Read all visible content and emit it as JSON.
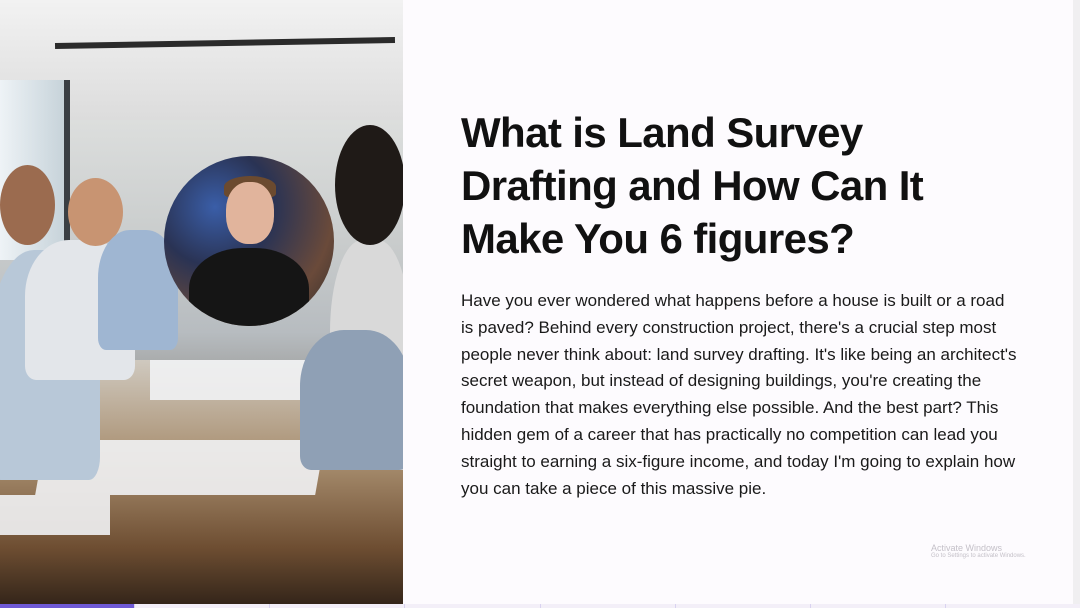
{
  "slide": {
    "title": "What is Land Survey Drafting and How Can It Make You 6 figures?",
    "body": "Have you ever wondered what happens before a house is built or a road is paved? Behind every construction project, there's a crucial step most people never think about: land survey drafting. It's like being an architect's secret weapon, but instead of designing buildings, you're creating the foundation that makes everything else possible. And the best part? This hidden gem of a career that has practically no competition can lead you straight to earning a six-figure income, and today I'm going to explain how you can take a piece of this massive pie."
  },
  "watermark": {
    "line1": "Activate Windows",
    "line2": "Go to Settings to activate Windows."
  },
  "progress": {
    "segments": 8,
    "completed": 1,
    "accent_color": "#6f5ad6"
  }
}
